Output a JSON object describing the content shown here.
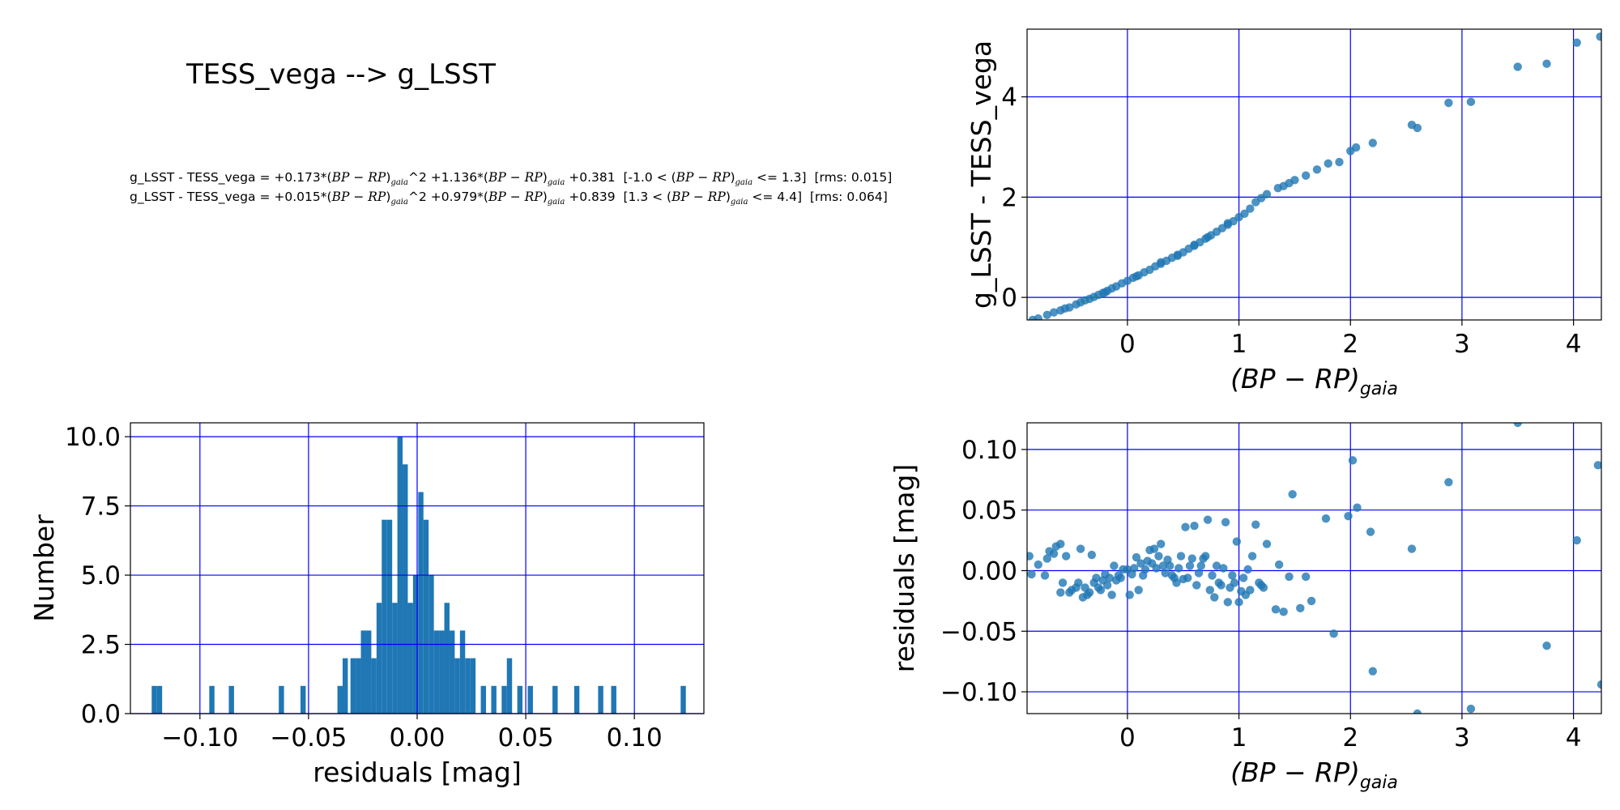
{
  "figure": {
    "title": "TESS_vega --> g_LSST",
    "equations": [
      {
        "lhs": "g_LSST - TESS_vega = ",
        "c2": "+0.173",
        "c1": "+1.136",
        "c0": "+0.381",
        "lo": "-1.0",
        "hi": "1.3",
        "rms": "0.015"
      },
      {
        "lhs": "g_LSST - TESS_vega = ",
        "c2": "+0.015",
        "c1": "+0.979",
        "c0": "+0.839",
        "lo": "1.3",
        "hi": "4.4",
        "rms": "0.064"
      }
    ],
    "colors": {
      "points": "#1f77b4",
      "grid": "#0000ff",
      "bars": "#1f77b4"
    }
  },
  "chart_data": [
    {
      "id": "fit",
      "type": "scatter",
      "xlabel": "(BP − RP)gaia",
      "ylabel": "g_LSST - TESS_vega",
      "xlim": [
        -0.9,
        4.25
      ],
      "ylim": [
        -0.45,
        5.35
      ],
      "xticks": [
        0,
        1,
        2,
        3,
        4
      ],
      "yticks": [
        0,
        2,
        4
      ],
      "grid": true,
      "points": [
        [
          -0.85,
          -0.45
        ],
        [
          -0.8,
          -0.42
        ],
        [
          -0.72,
          -0.35
        ],
        [
          -0.66,
          -0.3
        ],
        [
          -0.6,
          -0.26
        ],
        [
          -0.56,
          -0.22
        ],
        [
          -0.52,
          -0.2
        ],
        [
          -0.46,
          -0.14
        ],
        [
          -0.42,
          -0.1
        ],
        [
          -0.38,
          -0.06
        ],
        [
          -0.34,
          -0.03
        ],
        [
          -0.3,
          0.01
        ],
        [
          -0.26,
          0.05
        ],
        [
          -0.22,
          0.09
        ],
        [
          -0.18,
          0.13
        ],
        [
          -0.14,
          0.18
        ],
        [
          -0.1,
          0.22
        ],
        [
          -0.05,
          0.28
        ],
        [
          0.0,
          0.33
        ],
        [
          0.05,
          0.39
        ],
        [
          0.1,
          0.44
        ],
        [
          0.15,
          0.5
        ],
        [
          0.2,
          0.55
        ],
        [
          0.25,
          0.62
        ],
        [
          0.3,
          0.67
        ],
        [
          0.35,
          0.73
        ],
        [
          0.4,
          0.79
        ],
        [
          0.45,
          0.85
        ],
        [
          0.5,
          0.9
        ],
        [
          0.55,
          0.97
        ],
        [
          0.6,
          1.03
        ],
        [
          0.65,
          1.1
        ],
        [
          0.7,
          1.17
        ],
        [
          0.75,
          1.24
        ],
        [
          0.8,
          1.31
        ],
        [
          0.85,
          1.38
        ],
        [
          0.9,
          1.45
        ],
        [
          0.95,
          1.52
        ],
        [
          1.0,
          1.6
        ],
        [
          1.05,
          1.67
        ],
        [
          1.1,
          1.77
        ],
        [
          1.15,
          1.9
        ],
        [
          1.2,
          1.98
        ],
        [
          1.25,
          2.06
        ],
        [
          1.35,
          2.18
        ],
        [
          1.4,
          2.22
        ],
        [
          1.5,
          2.34
        ],
        [
          1.6,
          2.43
        ],
        [
          1.7,
          2.55
        ],
        [
          1.8,
          2.67
        ],
        [
          1.9,
          2.7
        ],
        [
          2.0,
          2.92
        ],
        [
          2.05,
          2.99
        ],
        [
          2.2,
          3.08
        ],
        [
          2.55,
          3.44
        ],
        [
          2.6,
          3.38
        ],
        [
          2.88,
          3.88
        ],
        [
          3.08,
          3.9
        ],
        [
          3.5,
          4.6
        ],
        [
          3.76,
          4.66
        ],
        [
          4.03,
          5.08
        ],
        [
          4.24,
          5.2
        ],
        [
          -0.2,
          0.1
        ],
        [
          0.3,
          0.7
        ],
        [
          0.6,
          1.05
        ],
        [
          0.9,
          1.48
        ],
        [
          1.45,
          2.28
        ],
        [
          0.45,
          0.83
        ],
        [
          0.72,
          1.2
        ],
        [
          0.08,
          0.42
        ]
      ]
    },
    {
      "id": "hist",
      "type": "bar",
      "xlabel": "residuals [mag]",
      "ylabel": "Number",
      "xlim": [
        -0.132,
        0.132
      ],
      "ylim": [
        0,
        10.5
      ],
      "xticks": [
        -0.1,
        -0.05,
        0.0,
        0.05,
        0.1
      ],
      "xticklabels": [
        "−0.10",
        "−0.05",
        "0.00",
        "0.05",
        "0.10"
      ],
      "yticks": [
        0,
        2.5,
        5,
        7.5,
        10
      ],
      "yticklabels": [
        "0.0",
        "2.5",
        "5.0",
        "7.5",
        "10.0"
      ],
      "grid": true,
      "bin_width": 0.0024,
      "bins": [
        [
          -0.121,
          1
        ],
        [
          -0.1186,
          1
        ],
        [
          -0.0945,
          1
        ],
        [
          -0.0855,
          1
        ],
        [
          -0.0625,
          1
        ],
        [
          -0.0525,
          1
        ],
        [
          -0.0355,
          1
        ],
        [
          -0.0331,
          2
        ],
        [
          -0.0295,
          2
        ],
        [
          -0.0271,
          2
        ],
        [
          -0.0247,
          3
        ],
        [
          -0.0223,
          3
        ],
        [
          -0.0199,
          2
        ],
        [
          -0.0175,
          4
        ],
        [
          -0.0151,
          7
        ],
        [
          -0.0127,
          7
        ],
        [
          -0.0103,
          4
        ],
        [
          -0.0079,
          10
        ],
        [
          -0.0055,
          9
        ],
        [
          -0.0031,
          4
        ],
        [
          -0.0007,
          5
        ],
        [
          0.0017,
          8
        ],
        [
          0.0041,
          7
        ],
        [
          0.0065,
          5
        ],
        [
          0.0089,
          3
        ],
        [
          0.0113,
          3
        ],
        [
          0.0137,
          4
        ],
        [
          0.0161,
          3
        ],
        [
          0.0185,
          2
        ],
        [
          0.0209,
          3
        ],
        [
          0.0233,
          2
        ],
        [
          0.0257,
          2
        ],
        [
          0.0305,
          1
        ],
        [
          0.0353,
          1
        ],
        [
          0.0401,
          1
        ],
        [
          0.0425,
          2
        ],
        [
          0.0473,
          1
        ],
        [
          0.0521,
          1
        ],
        [
          0.0635,
          1
        ],
        [
          0.0735,
          1
        ],
        [
          0.0845,
          1
        ],
        [
          0.0905,
          1
        ],
        [
          0.1225,
          1
        ]
      ]
    },
    {
      "id": "resid",
      "type": "scatter",
      "xlabel": "(BP − RP)gaia",
      "ylabel": "residuals [mag]",
      "xlim": [
        -0.9,
        4.25
      ],
      "ylim": [
        -0.118,
        0.122
      ],
      "xticks": [
        0,
        1,
        2,
        3,
        4
      ],
      "yticks": [
        -0.1,
        -0.05,
        0.0,
        0.05,
        0.1
      ],
      "yticklabels": [
        "−0.10",
        "−0.05",
        "0.00",
        "0.05",
        "0.10"
      ],
      "grid": true,
      "points": [
        [
          -0.88,
          0.012
        ],
        [
          -0.86,
          -0.003
        ],
        [
          -0.8,
          0.005
        ],
        [
          -0.74,
          -0.004
        ],
        [
          -0.72,
          0.01
        ],
        [
          -0.7,
          0.016
        ],
        [
          -0.66,
          0.014
        ],
        [
          -0.64,
          0.02
        ],
        [
          -0.6,
          -0.018
        ],
        [
          -0.6,
          0.022
        ],
        [
          -0.58,
          -0.01
        ],
        [
          -0.55,
          0.012
        ],
        [
          -0.52,
          -0.018
        ],
        [
          -0.5,
          -0.016
        ],
        [
          -0.46,
          -0.014
        ],
        [
          -0.44,
          -0.01
        ],
        [
          -0.42,
          0.018
        ],
        [
          -0.4,
          -0.022
        ],
        [
          -0.38,
          -0.014
        ],
        [
          -0.36,
          -0.02
        ],
        [
          -0.34,
          -0.018
        ],
        [
          -0.32,
          0.013
        ],
        [
          -0.3,
          -0.01
        ],
        [
          -0.28,
          -0.006
        ],
        [
          -0.26,
          -0.014
        ],
        [
          -0.24,
          -0.016
        ],
        [
          -0.22,
          -0.008
        ],
        [
          -0.2,
          -0.003
        ],
        [
          -0.18,
          -0.012
        ],
        [
          -0.16,
          -0.006
        ],
        [
          -0.14,
          -0.02
        ],
        [
          -0.12,
          0.004
        ],
        [
          -0.1,
          -0.008
        ],
        [
          -0.08,
          -0.004
        ],
        [
          -0.06,
          -0.006
        ],
        [
          -0.04,
          0.001
        ],
        [
          0.0,
          0.001
        ],
        [
          0.02,
          -0.02
        ],
        [
          0.04,
          -0.003
        ],
        [
          0.06,
          0.002
        ],
        [
          0.08,
          0.011
        ],
        [
          0.1,
          -0.016
        ],
        [
          0.12,
          0.006
        ],
        [
          0.14,
          -0.004
        ],
        [
          0.16,
          0.001
        ],
        [
          0.18,
          0.008
        ],
        [
          0.2,
          0.017
        ],
        [
          0.22,
          0.006
        ],
        [
          0.24,
          0.018
        ],
        [
          0.26,
          0.002
        ],
        [
          0.28,
          0.012
        ],
        [
          0.3,
          0.022
        ],
        [
          0.32,
          0.004
        ],
        [
          0.34,
          -0.002
        ],
        [
          0.36,
          0.009
        ],
        [
          0.38,
          0.004
        ],
        [
          0.4,
          -0.004
        ],
        [
          0.42,
          -0.006
        ],
        [
          0.44,
          -0.01
        ],
        [
          0.46,
          0.002
        ],
        [
          0.48,
          0.012
        ],
        [
          0.5,
          -0.007
        ],
        [
          0.52,
          0.036
        ],
        [
          0.54,
          -0.006
        ],
        [
          0.56,
          0.004
        ],
        [
          0.58,
          0.01
        ],
        [
          0.6,
          0.037
        ],
        [
          0.62,
          -0.012
        ],
        [
          0.64,
          -0.002
        ],
        [
          0.66,
          0.004
        ],
        [
          0.68,
          0.01
        ],
        [
          0.7,
          0.012
        ],
        [
          0.72,
          0.042
        ],
        [
          0.74,
          -0.016
        ],
        [
          0.76,
          -0.004
        ],
        [
          0.78,
          -0.022
        ],
        [
          0.8,
          0.004
        ],
        [
          0.82,
          -0.01
        ],
        [
          0.84,
          -0.012
        ],
        [
          0.86,
          0.002
        ],
        [
          0.88,
          0.04
        ],
        [
          0.9,
          -0.026
        ],
        [
          0.92,
          -0.014
        ],
        [
          0.94,
          -0.004
        ],
        [
          0.96,
          -0.01
        ],
        [
          0.98,
          0.024
        ],
        [
          1.0,
          -0.026
        ],
        [
          1.02,
          -0.017
        ],
        [
          1.04,
          -0.006
        ],
        [
          1.06,
          -0.02
        ],
        [
          1.08,
          0.001
        ],
        [
          1.1,
          -0.016
        ],
        [
          1.12,
          0.012
        ],
        [
          1.15,
          0.038
        ],
        [
          1.18,
          -0.01
        ],
        [
          1.2,
          -0.012
        ],
        [
          1.22,
          -0.014
        ],
        [
          1.25,
          0.022
        ],
        [
          1.33,
          -0.032
        ],
        [
          1.36,
          0.005
        ],
        [
          1.4,
          -0.034
        ],
        [
          1.45,
          -0.005
        ],
        [
          1.48,
          0.063
        ],
        [
          1.55,
          -0.031
        ],
        [
          1.6,
          -0.005
        ],
        [
          1.65,
          -0.025
        ],
        [
          1.78,
          0.043
        ],
        [
          1.85,
          -0.052
        ],
        [
          1.98,
          0.045
        ],
        [
          2.02,
          0.091
        ],
        [
          2.06,
          0.052
        ],
        [
          2.18,
          0.032
        ],
        [
          2.2,
          -0.083
        ],
        [
          2.55,
          0.018
        ],
        [
          2.6,
          -0.118
        ],
        [
          2.88,
          0.073
        ],
        [
          3.08,
          -0.114
        ],
        [
          3.5,
          0.122
        ],
        [
          3.76,
          -0.062
        ],
        [
          4.03,
          0.025
        ],
        [
          4.22,
          0.087
        ],
        [
          4.25,
          -0.094
        ]
      ]
    }
  ]
}
